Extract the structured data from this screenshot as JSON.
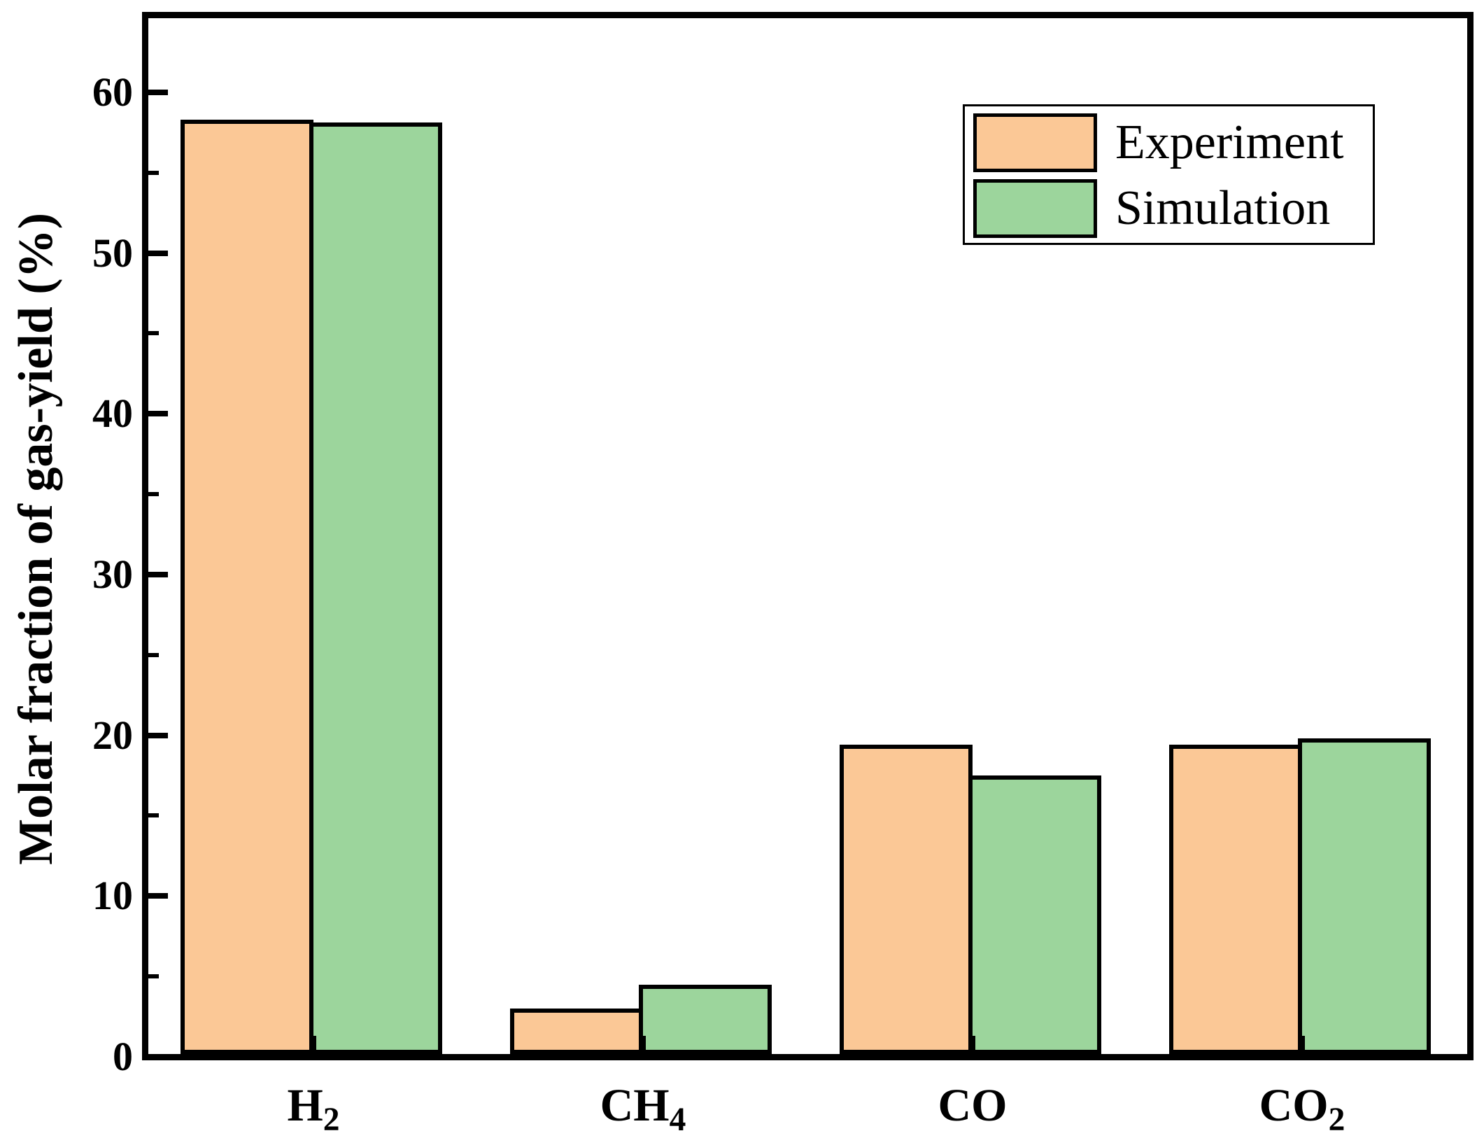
{
  "figure": {
    "background": "#ffffff"
  },
  "axis": {
    "ylabel": "Molar fraction of gas-yield (%)",
    "y_major_ticks": [
      0,
      10,
      20,
      30,
      40,
      50,
      60
    ],
    "y_minor_step": 5,
    "black": "#000000"
  },
  "legend": {
    "entries": [
      {
        "label": "Experiment",
        "color": "#FBC896"
      },
      {
        "label": "Simulation",
        "color": "#9CD59C"
      }
    ]
  },
  "chart_data": {
    "type": "bar",
    "title": "",
    "xlabel": "",
    "ylabel": "Molar fraction of gas-yield (%)",
    "ylim": [
      0,
      65
    ],
    "y_axis_max_label": 60,
    "grid": false,
    "legend_position": "upper right",
    "categories": [
      "H2",
      "CH4",
      "CO",
      "CO2"
    ],
    "categories_formatted": [
      {
        "text": "H",
        "sub": "2"
      },
      {
        "text": "CH",
        "sub": "4"
      },
      {
        "text": "CO",
        "sub": ""
      },
      {
        "text": "CO",
        "sub": "2"
      }
    ],
    "series": [
      {
        "name": "Experiment",
        "color": "#FBC896",
        "values": [
          58.3,
          3.0,
          19.4,
          19.4
        ]
      },
      {
        "name": "Simulation",
        "color": "#9CD59C",
        "values": [
          58.1,
          4.5,
          17.5,
          19.8
        ]
      }
    ]
  }
}
